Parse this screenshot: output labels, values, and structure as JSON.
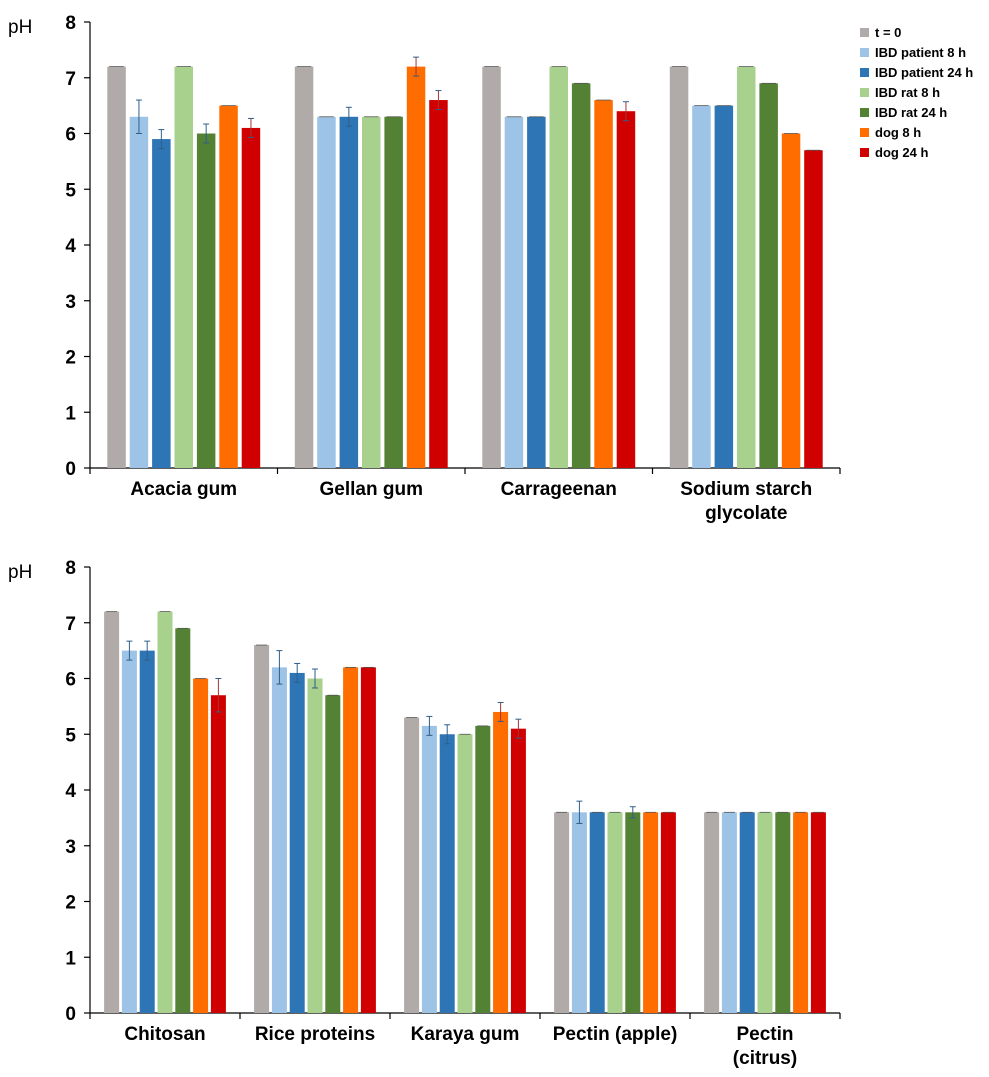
{
  "legend": [
    "t = 0",
    "IBD patient 8 h",
    "IBD patient 24 h",
    "IBD rat 8 h",
    "IBD rat 24 h",
    "dog 8 h",
    "dog 24 h"
  ],
  "colors": [
    "#b0aaa8",
    "#9dc3e6",
    "#2e75b6",
    "#a9d18e",
    "#548235",
    "#ff6d00",
    "#d00000"
  ],
  "chart_data": [
    {
      "type": "bar",
      "ylabel": "pH",
      "ylim": [
        0,
        8
      ],
      "yticks": [
        "0",
        "1",
        "2",
        "3",
        "4",
        "5",
        "6",
        "7",
        "8"
      ],
      "categories": [
        [
          "Acacia gum"
        ],
        [
          "Gellan gum"
        ],
        [
          "Carrageenan"
        ],
        [
          "Sodium starch",
          "glycolate"
        ]
      ],
      "series": [
        {
          "name": "t = 0",
          "values": [
            7.2,
            7.2,
            7.2,
            7.2
          ],
          "errors": [
            0,
            0,
            0,
            0
          ]
        },
        {
          "name": "IBD patient 8 h",
          "values": [
            6.3,
            6.3,
            6.3,
            6.5
          ],
          "errors": [
            0.3,
            0,
            0,
            0
          ]
        },
        {
          "name": "IBD patient 24 h",
          "values": [
            5.9,
            6.3,
            6.3,
            6.5
          ],
          "errors": [
            0.17,
            0.17,
            0,
            0
          ]
        },
        {
          "name": "IBD rat 8 h",
          "values": [
            7.2,
            6.3,
            7.2,
            7.2
          ],
          "errors": [
            0,
            0,
            0,
            0
          ]
        },
        {
          "name": "IBD rat 24 h",
          "values": [
            6.0,
            6.3,
            6.9,
            6.9
          ],
          "errors": [
            0.17,
            0,
            0,
            0
          ]
        },
        {
          "name": "dog 8 h",
          "values": [
            6.5,
            7.2,
            6.6,
            6.0
          ],
          "errors": [
            0,
            0.17,
            0,
            0
          ]
        },
        {
          "name": "dog 24 h",
          "values": [
            6.1,
            6.6,
            6.4,
            5.7
          ],
          "errors": [
            0.17,
            0.17,
            0.17,
            0
          ]
        }
      ]
    },
    {
      "type": "bar",
      "ylabel": "pH",
      "ylim": [
        0,
        8
      ],
      "yticks": [
        "0",
        "1",
        "2",
        "3",
        "4",
        "5",
        "6",
        "7",
        "8"
      ],
      "categories": [
        [
          "Chitosan"
        ],
        [
          "Rice proteins"
        ],
        [
          "Karaya gum"
        ],
        [
          "Pectin (apple)"
        ],
        [
          "Pectin",
          "(citrus)"
        ]
      ],
      "series": [
        {
          "name": "t = 0",
          "values": [
            7.2,
            6.6,
            5.3,
            3.6,
            3.6
          ],
          "errors": [
            0,
            0,
            0,
            0,
            0
          ]
        },
        {
          "name": "IBD patient 8 h",
          "values": [
            6.5,
            6.2,
            5.15,
            3.6,
            3.6
          ],
          "errors": [
            0.17,
            0.3,
            0.17,
            0.2,
            0
          ]
        },
        {
          "name": "IBD patient 24 h",
          "values": [
            6.5,
            6.1,
            5.0,
            3.6,
            3.6
          ],
          "errors": [
            0.17,
            0.17,
            0.17,
            0,
            0
          ]
        },
        {
          "name": "IBD rat 8 h",
          "values": [
            7.2,
            6.0,
            5.0,
            3.6,
            3.6
          ],
          "errors": [
            0,
            0.17,
            0,
            0,
            0
          ]
        },
        {
          "name": "IBD rat 24 h",
          "values": [
            6.9,
            5.7,
            5.15,
            3.6,
            3.6
          ],
          "errors": [
            0,
            0,
            0,
            0.1,
            0
          ]
        },
        {
          "name": "dog 8 h",
          "values": [
            6.0,
            6.2,
            5.4,
            3.6,
            3.6
          ],
          "errors": [
            0,
            0,
            0.17,
            0,
            0
          ]
        },
        {
          "name": "dog 24 h",
          "values": [
            5.7,
            6.2,
            5.1,
            3.6,
            3.6
          ],
          "errors": [
            0.3,
            0,
            0.17,
            0,
            0
          ]
        }
      ]
    }
  ]
}
